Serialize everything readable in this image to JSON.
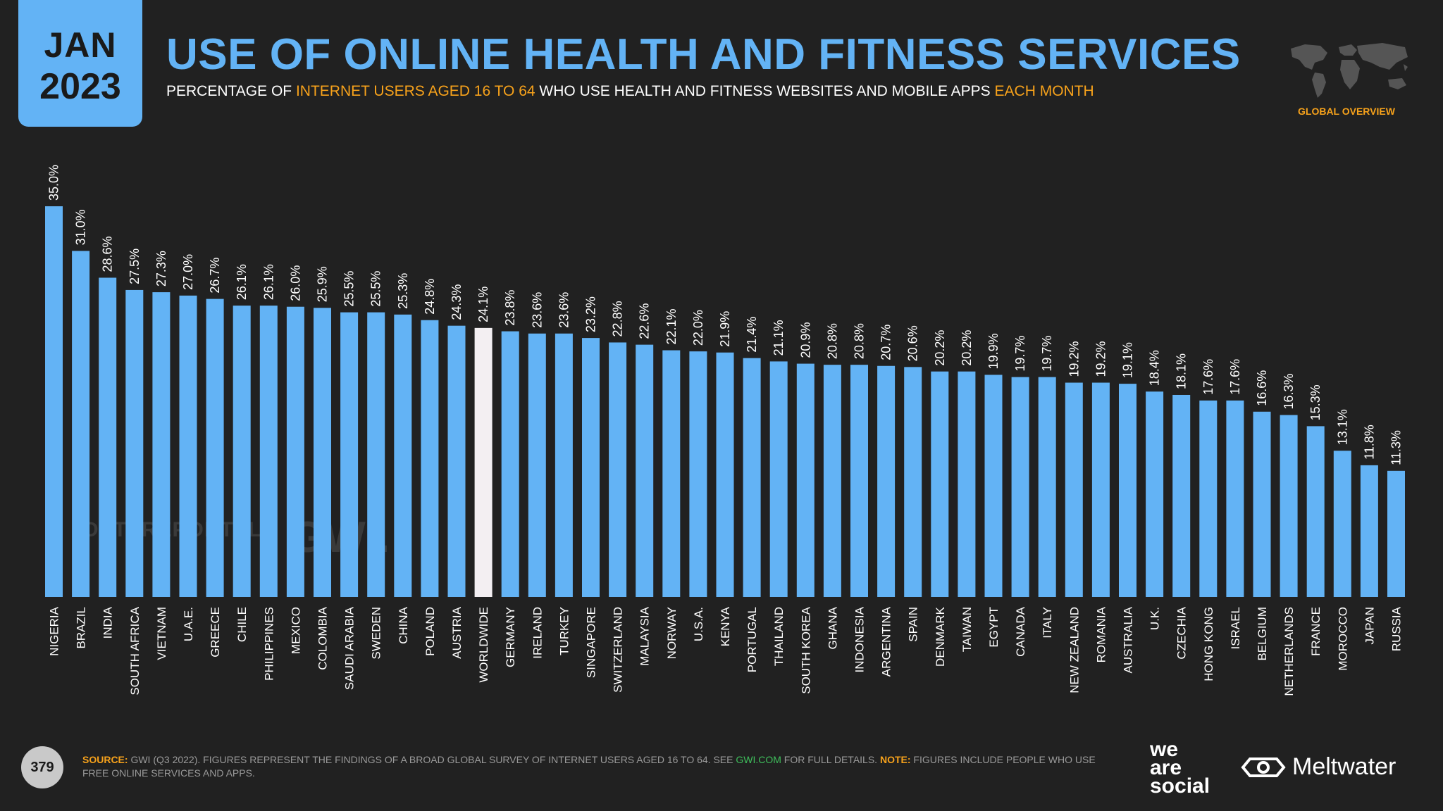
{
  "header": {
    "month": "JAN",
    "year": "2023",
    "title": "USE OF ONLINE HEALTH AND FITNESS SERVICES",
    "subtitle_1": "PERCENTAGE OF ",
    "subtitle_2": "INTERNET USERS AGED 16 TO 64",
    "subtitle_3": " WHO USE HEALTH AND FITNESS WEBSITES AND MOBILE APPS ",
    "subtitle_4": "EACH MONTH",
    "region_label": "GLOBAL OVERVIEW"
  },
  "watermark": {
    "brand_1": "DATAREPORTAL",
    "brand_2": "GWI."
  },
  "colors": {
    "accent": "#63b3f5",
    "highlight": "#f3eff2",
    "orange": "#f7a21b",
    "background": "#212121"
  },
  "chart_data": {
    "type": "bar",
    "title": "USE OF ONLINE HEALTH AND FITNESS SERVICES",
    "xlabel": "",
    "ylabel": "",
    "ylim": [
      0,
      36
    ],
    "highlight_category": "WORLDWIDE",
    "categories": [
      "NIGERIA",
      "BRAZIL",
      "INDIA",
      "SOUTH AFRICA",
      "VIETNAM",
      "U.A.E.",
      "GREECE",
      "CHILE",
      "PHILIPPINES",
      "MEXICO",
      "COLOMBIA",
      "SAUDI ARABIA",
      "SWEDEN",
      "CHINA",
      "POLAND",
      "AUSTRIA",
      "WORLDWIDE",
      "GERMANY",
      "IRELAND",
      "TURKEY",
      "SINGAPORE",
      "SWITZERLAND",
      "MALAYSIA",
      "NORWAY",
      "U.S.A.",
      "KENYA",
      "PORTUGAL",
      "THAILAND",
      "SOUTH KOREA",
      "GHANA",
      "INDONESIA",
      "ARGENTINA",
      "SPAIN",
      "DENMARK",
      "TAIWAN",
      "EGYPT",
      "CANADA",
      "ITALY",
      "NEW ZEALAND",
      "ROMANIA",
      "AUSTRALIA",
      "U.K.",
      "CZECHIA",
      "HONG KONG",
      "ISRAEL",
      "BELGIUM",
      "NETHERLANDS",
      "FRANCE",
      "MOROCCO",
      "JAPAN",
      "RUSSIA"
    ],
    "values": [
      35.0,
      31.0,
      28.6,
      27.5,
      27.3,
      27.0,
      26.7,
      26.1,
      26.1,
      26.0,
      25.9,
      25.5,
      25.5,
      25.3,
      24.8,
      24.3,
      24.1,
      23.8,
      23.6,
      23.6,
      23.2,
      22.8,
      22.6,
      22.1,
      22.0,
      21.9,
      21.4,
      21.1,
      20.9,
      20.8,
      20.8,
      20.7,
      20.6,
      20.2,
      20.2,
      19.9,
      19.7,
      19.7,
      19.2,
      19.2,
      19.1,
      18.4,
      18.1,
      17.6,
      17.6,
      16.6,
      16.3,
      15.3,
      13.1,
      11.8,
      11.3
    ],
    "value_labels": [
      "35.0%",
      "31.0%",
      "28.6%",
      "27.5%",
      "27.3%",
      "27.0%",
      "26.7%",
      "26.1%",
      "26.1%",
      "26.0%",
      "25.9%",
      "25.5%",
      "25.5%",
      "25.3%",
      "24.8%",
      "24.3%",
      "24.1%",
      "23.8%",
      "23.6%",
      "23.6%",
      "23.2%",
      "22.8%",
      "22.6%",
      "22.1%",
      "22.0%",
      "21.9%",
      "21.4%",
      "21.1%",
      "20.9%",
      "20.8%",
      "20.8%",
      "20.7%",
      "20.6%",
      "20.2%",
      "20.2%",
      "19.9%",
      "19.7%",
      "19.7%",
      "19.2%",
      "19.2%",
      "19.1%",
      "18.4%",
      "18.1%",
      "17.6%",
      "17.6%",
      "16.6%",
      "16.3%",
      "15.3%",
      "13.1%",
      "11.8%",
      "11.3%"
    ]
  },
  "footer": {
    "page_number": "379",
    "source_key": "SOURCE:",
    "source_text": " GWI (Q3 2022). FIGURES REPRESENT THE FINDINGS OF A BROAD GLOBAL SURVEY OF INTERNET USERS AGED 16 TO 64. SEE ",
    "source_link": "GWI.COM",
    "source_text_2": " FOR FULL DETAILS. ",
    "note_key": "NOTE:",
    "note_text": " FIGURES INCLUDE PEOPLE WHO USE FREE ONLINE SERVICES AND APPS.",
    "logo_1_line_1": "we",
    "logo_1_line_2": "are",
    "logo_1_line_3": "social",
    "logo_2": "Meltwater"
  }
}
